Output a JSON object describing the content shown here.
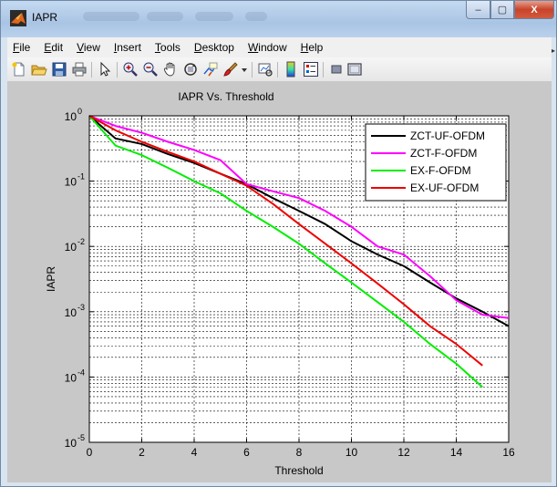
{
  "window": {
    "title": "IAPR",
    "minimize_label": "–",
    "maximize_label": "▢",
    "close_label": "X"
  },
  "menu": [
    {
      "label": "File",
      "key": "F",
      "rest": "ile"
    },
    {
      "label": "Edit",
      "key": "E",
      "rest": "dit"
    },
    {
      "label": "View",
      "key": "V",
      "rest": "iew"
    },
    {
      "label": "Insert",
      "key": "I",
      "rest": "nsert"
    },
    {
      "label": "Tools",
      "key": "T",
      "rest": "ools"
    },
    {
      "label": "Desktop",
      "key": "D",
      "rest": "esktop"
    },
    {
      "label": "Window",
      "key": "W",
      "rest": "indow"
    },
    {
      "label": "Help",
      "key": "H",
      "rest": "elp"
    }
  ],
  "toolbar": {
    "icons": [
      "new-figure-icon",
      "open-file-icon",
      "save-icon",
      "print-icon",
      "select-arrow-icon",
      "zoom-in-icon",
      "zoom-out-icon",
      "pan-hand-icon",
      "rotate-3d-icon",
      "data-cursor-icon",
      "brush-icon",
      "brush-dropdown-icon",
      "link-plot-icon",
      "colorbar-icon",
      "legend-icon",
      "hide-plot-tools-icon",
      "show-plot-tools-icon"
    ]
  },
  "chart_data": {
    "type": "line",
    "title": "IAPR Vs. Threshold",
    "xlabel": "Threshold",
    "ylabel": "IAPR",
    "xlim": [
      0,
      16
    ],
    "ylim": [
      1e-05,
      1
    ],
    "yscale": "log",
    "grid": "on (major and minor, dashed)",
    "legend_position": "top-right",
    "x_ticks": [
      "0",
      "2",
      "4",
      "6",
      "8",
      "10",
      "12",
      "14",
      "16"
    ],
    "y_ticks": [
      {
        "base": "10",
        "exp": "0"
      },
      {
        "base": "10",
        "exp": "-1"
      },
      {
        "base": "10",
        "exp": "-2"
      },
      {
        "base": "10",
        "exp": "-3"
      },
      {
        "base": "10",
        "exp": "-4"
      },
      {
        "base": "10",
        "exp": "-5"
      }
    ],
    "series": [
      {
        "name": "ZCT-UF-OFDM",
        "color": "#000000",
        "x": [
          0,
          1,
          2,
          3,
          4,
          5,
          6,
          7,
          8,
          9,
          10,
          11,
          12,
          13,
          14,
          15,
          16
        ],
        "y": [
          1.0,
          0.45,
          0.37,
          0.26,
          0.19,
          0.13,
          0.09,
          0.055,
          0.035,
          0.022,
          0.012,
          0.0075,
          0.005,
          0.0028,
          0.0016,
          0.001,
          0.0006
        ]
      },
      {
        "name": "ZCT-F-OFDM",
        "color": "#ff00ff",
        "x": [
          0,
          1,
          2,
          3,
          4,
          5,
          6,
          7,
          8,
          9,
          10,
          11,
          12,
          13,
          14,
          15,
          16
        ],
        "y": [
          1.0,
          0.7,
          0.55,
          0.4,
          0.3,
          0.21,
          0.09,
          0.07,
          0.055,
          0.035,
          0.02,
          0.01,
          0.0075,
          0.0035,
          0.0015,
          0.0009,
          0.0008
        ]
      },
      {
        "name": "EX-F-OFDM",
        "color": "#00ee00",
        "x": [
          0,
          1,
          2,
          3,
          4,
          5,
          6,
          7,
          8,
          9,
          10,
          11,
          12,
          13,
          14,
          15
        ],
        "y": [
          1.0,
          0.35,
          0.25,
          0.16,
          0.1,
          0.065,
          0.035,
          0.02,
          0.011,
          0.0055,
          0.0028,
          0.0014,
          0.0007,
          0.00032,
          0.00016,
          7e-05
        ]
      },
      {
        "name": "EX-UF-OFDM",
        "color": "#ee0000",
        "x": [
          0,
          1,
          2,
          3,
          4,
          5,
          6,
          7,
          8,
          9,
          10,
          11,
          12,
          13,
          14,
          15
        ],
        "y": [
          1.0,
          0.6,
          0.4,
          0.28,
          0.2,
          0.13,
          0.085,
          0.045,
          0.022,
          0.011,
          0.0055,
          0.0027,
          0.0013,
          0.0006,
          0.00032,
          0.00015
        ]
      }
    ]
  }
}
